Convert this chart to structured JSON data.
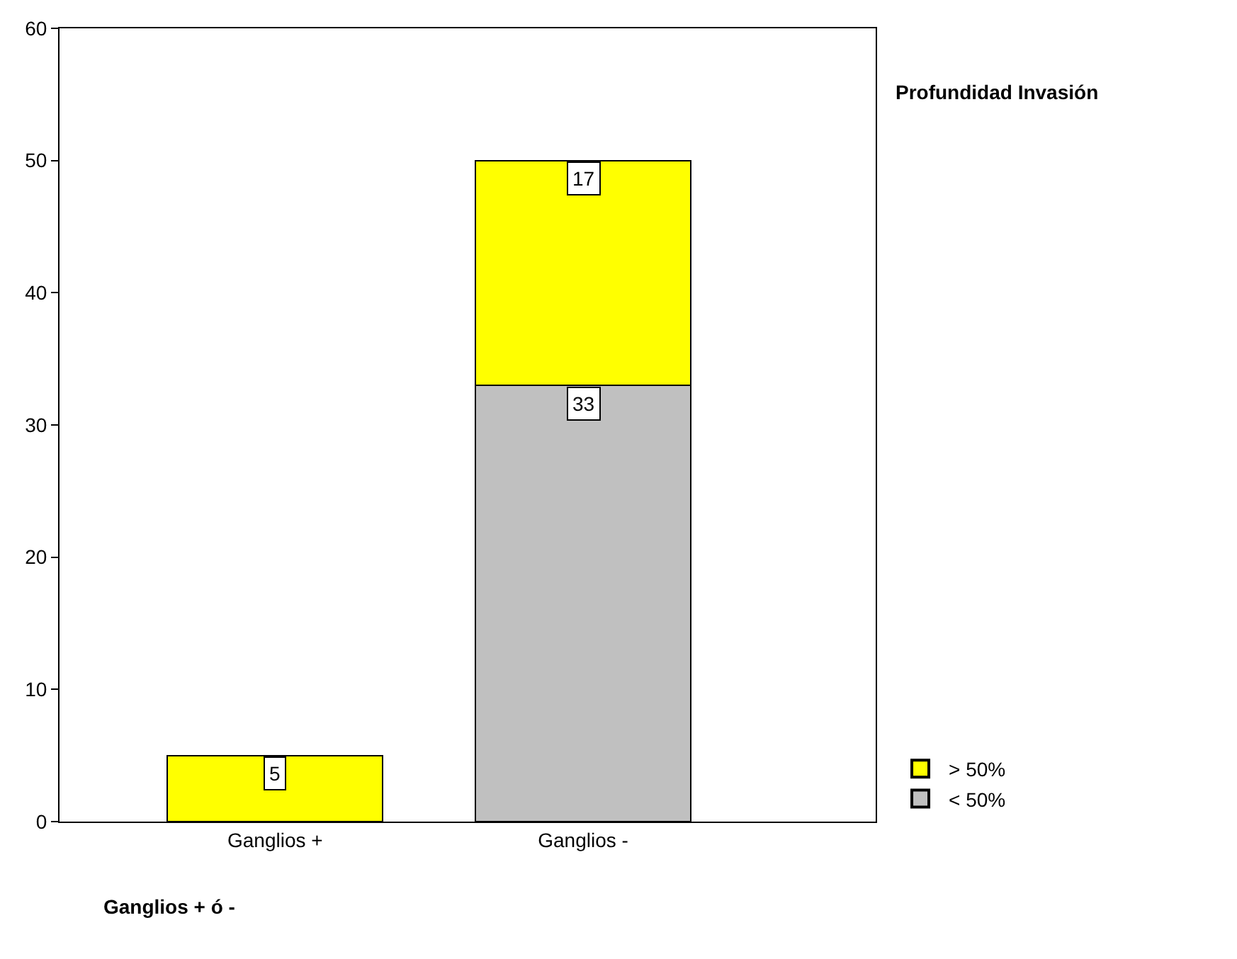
{
  "chart_data": {
    "type": "bar",
    "stacked": true,
    "xlabel": "Ganglios + ó -",
    "legend_title": "Profundidad Invasión",
    "categories": [
      "Ganglios +",
      "Ganglios -"
    ],
    "series": [
      {
        "name": "< 50%",
        "color": "#c0c0c0",
        "values": [
          null,
          33
        ],
        "value_labels": [
          null,
          "33"
        ]
      },
      {
        "name": "> 50%",
        "color": "#ffff00",
        "values": [
          5,
          17
        ],
        "value_labels": [
          "5",
          "17"
        ]
      }
    ],
    "ylim": [
      0,
      60
    ],
    "yticks": [
      0,
      10,
      20,
      30,
      40,
      50,
      60
    ],
    "legend": "bottom right"
  }
}
